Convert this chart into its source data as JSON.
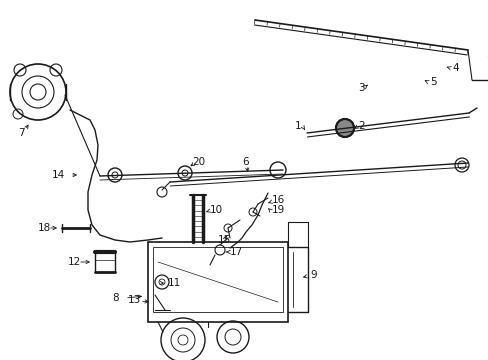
{
  "bg_color": "#ffffff",
  "line_color": "#1a1a1a",
  "fig_width": 4.89,
  "fig_height": 3.6,
  "dpi": 100,
  "label_fs": 7.5,
  "lw_main": 1.0,
  "lw_thin": 0.7
}
